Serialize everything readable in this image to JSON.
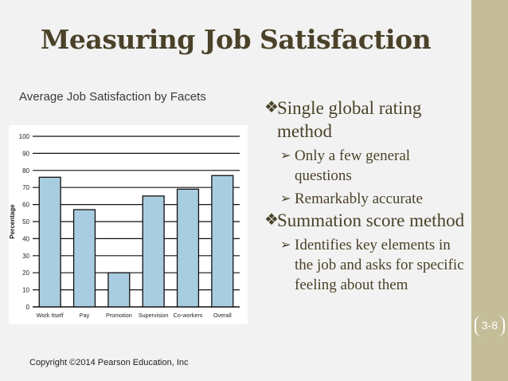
{
  "slide": {
    "title": "Measuring Job Satisfaction",
    "slide_number": "3-8",
    "copyright": "Copyright ©2014 Pearson Education, Inc",
    "chart_caption": "Average Job Satisfaction by Facets"
  },
  "bullets": [
    {
      "level": 1,
      "marker": "❖",
      "text": "Single global rating method"
    },
    {
      "level": 2,
      "marker": "➢",
      "text": "Only a few general questions"
    },
    {
      "level": 2,
      "marker": "➢",
      "text": "Remarkably accurate"
    },
    {
      "level": 1,
      "marker": "❖",
      "text": "Summation score method"
    },
    {
      "level": 2,
      "marker": "➢",
      "text": "Identifies key elements in the job and asks for specific feeling about them"
    }
  ],
  "colors": {
    "bar_fill": "#a9cde0",
    "bar_stroke": "#111111",
    "title": "#4a4229",
    "side_bar": "#c4bd97"
  },
  "chart_data": {
    "type": "bar",
    "title": "Average Job Satisfaction by Facets",
    "xlabel": "",
    "ylabel": "Percentage",
    "categories": [
      "Work Itself",
      "Pay",
      "Promotion",
      "Supervision",
      "Co-workers",
      "Overall"
    ],
    "values": [
      76,
      57,
      20,
      65,
      69,
      77
    ],
    "ylim": [
      0,
      100
    ],
    "yticks": [
      0,
      10,
      20,
      30,
      40,
      50,
      60,
      70,
      80,
      90,
      100
    ],
    "grid": true,
    "legend": "none"
  }
}
